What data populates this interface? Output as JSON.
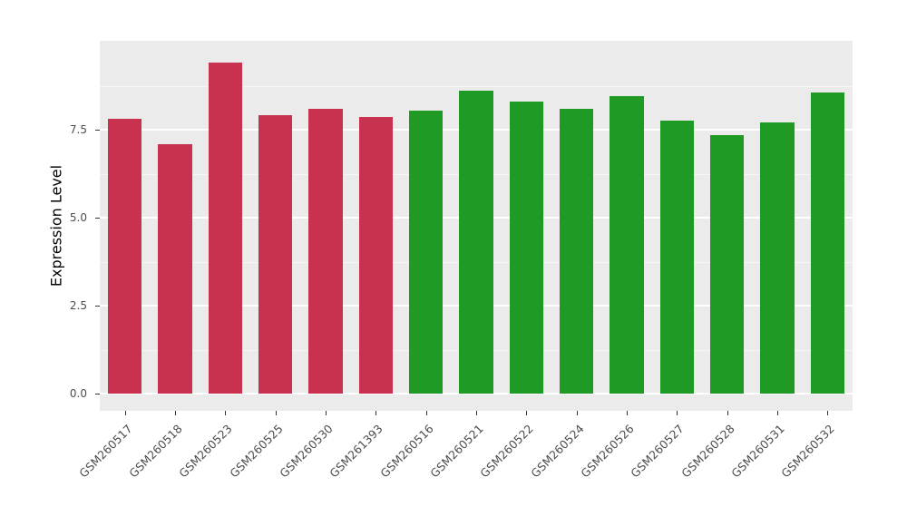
{
  "chart_data": {
    "type": "bar",
    "title": "",
    "xlabel": "",
    "ylabel": "Expression Level",
    "ylim": [
      0,
      10
    ],
    "yticks": [
      0.0,
      2.5,
      5.0,
      7.5
    ],
    "ytick_labels": [
      "0.0",
      "2.5",
      "5.0",
      "7.5"
    ],
    "minor_gridlines": [
      1.25,
      3.75,
      6.25,
      8.75
    ],
    "grid": true,
    "legend_position": "none",
    "panel_background": "#EBEBEB",
    "gridline_color": "#FFFFFF",
    "categories": [
      "GSM260517",
      "GSM260518",
      "GSM260523",
      "GSM260525",
      "GSM260530",
      "GSM261393",
      "GSM260516",
      "GSM260521",
      "GSM260522",
      "GSM260524",
      "GSM260526",
      "GSM260527",
      "GSM260528",
      "GSM260531",
      "GSM260532"
    ],
    "values": [
      7.8,
      7.1,
      9.4,
      7.9,
      8.1,
      7.85,
      8.05,
      8.6,
      8.3,
      8.1,
      8.45,
      7.75,
      7.35,
      7.7,
      8.55
    ],
    "groups": [
      "red",
      "red",
      "red",
      "red",
      "red",
      "red",
      "green",
      "green",
      "green",
      "green",
      "green",
      "green",
      "green",
      "green",
      "green"
    ],
    "group_colors": {
      "red": "#C8324E",
      "green": "#1F9B25"
    }
  }
}
